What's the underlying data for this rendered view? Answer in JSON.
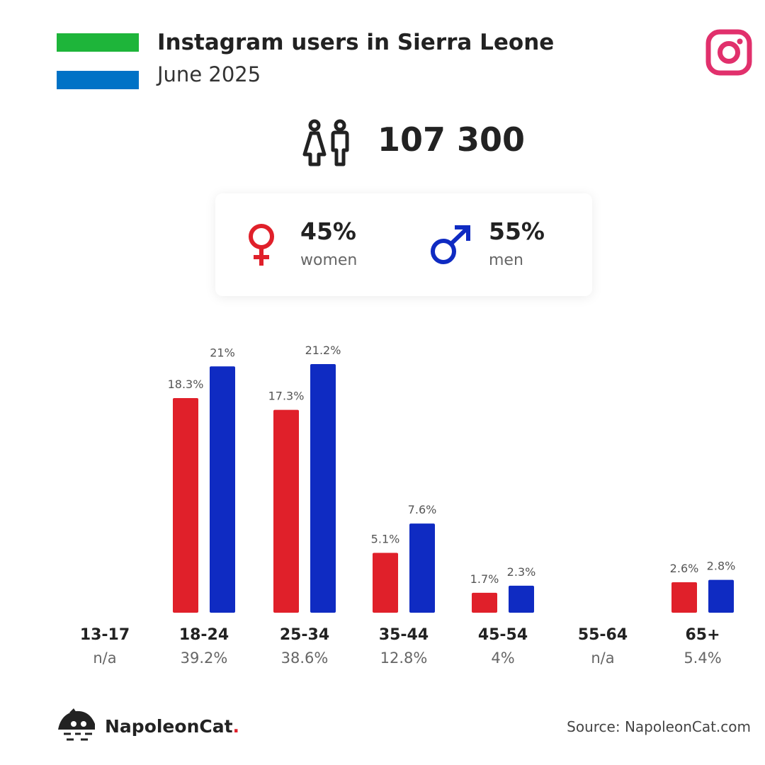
{
  "header": {
    "title": "Instagram users in Sierra Leone",
    "subtitle": "June 2025",
    "flag_colors": [
      "#1eb53a",
      "#ffffff",
      "#0072c6"
    ],
    "logo_icon": "instagram-icon",
    "logo_color": "#e1306c"
  },
  "total": {
    "icon": "people-icon",
    "value": "107 300"
  },
  "gender": {
    "women": {
      "icon": "female-symbol-icon",
      "pct": "45%",
      "label": "women",
      "color": "#e0202a"
    },
    "men": {
      "icon": "male-symbol-icon",
      "pct": "55%",
      "label": "men",
      "color": "#0f2bc2"
    }
  },
  "chart_data": {
    "type": "bar",
    "categories": [
      "13-17",
      "18-24",
      "25-34",
      "35-44",
      "45-54",
      "55-64",
      "65+"
    ],
    "category_shares": [
      "n/a",
      "39.2%",
      "38.6%",
      "12.8%",
      "4%",
      "n/a",
      "5.4%"
    ],
    "series": [
      {
        "values": [
          null,
          18.3,
          17.3,
          5.1,
          1.7,
          null,
          2.6
        ],
        "labels": [
          "",
          "18.3%",
          "17.3%",
          "5.1%",
          "1.7%",
          "",
          "2.6%"
        ],
        "color": "#e0202a"
      },
      {
        "values": [
          null,
          21,
          21.2,
          7.6,
          2.3,
          null,
          2.8
        ],
        "labels": [
          "",
          "21%",
          "21.2%",
          "7.6%",
          "2.3%",
          "",
          "2.8%"
        ],
        "color": "#0f2bc2"
      }
    ],
    "ylim": [
      0,
      21.2
    ],
    "grid": false,
    "legend": "none"
  },
  "footer": {
    "brand_icon": "napoleoncat-logo-icon",
    "brand_name": "NapoleonCat",
    "brand_dot": ".",
    "source": "Source: NapoleonCat.com"
  }
}
